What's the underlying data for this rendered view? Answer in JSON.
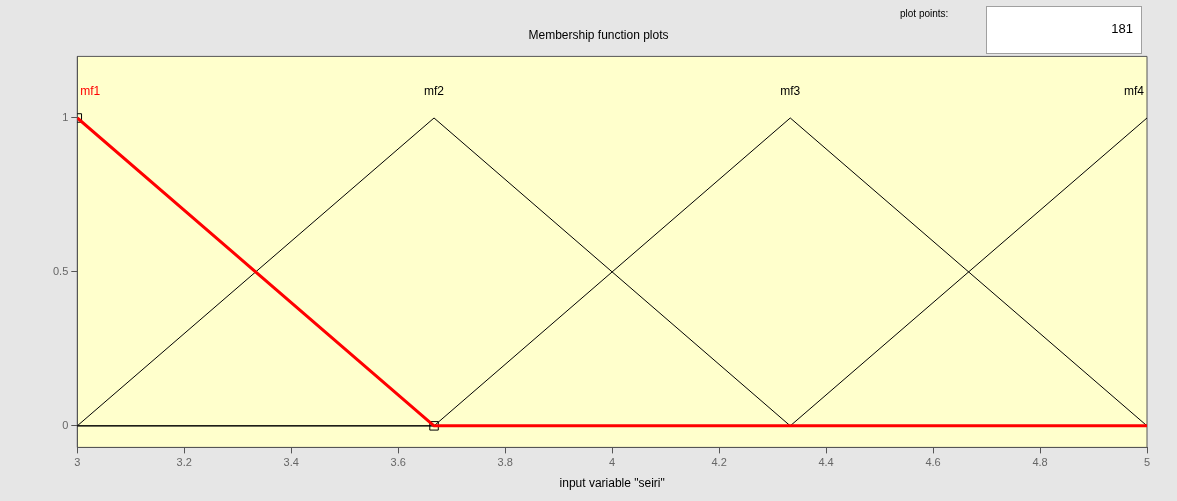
{
  "chart_data": {
    "type": "line",
    "title": "Membership function plots",
    "xlabel": "input variable \"seiri\"",
    "xlim": [
      3,
      5
    ],
    "xticks": [
      3,
      3.2,
      3.4,
      3.6,
      3.8,
      4,
      4.2,
      4.4,
      4.6,
      4.8,
      5
    ],
    "ylim": [
      -0.07,
      1.2
    ],
    "yticks": [
      0,
      0.5,
      1
    ],
    "grid": false,
    "legend": false,
    "marker": "none",
    "line_style": "solid",
    "annotations": [
      "plot points:",
      "181"
    ],
    "series": [
      {
        "name": "mf1",
        "color": "#ff0000",
        "x": [
          3,
          3.667,
          5
        ],
        "values": [
          1,
          0,
          0
        ]
      },
      {
        "name": "mf2",
        "color": "#000000",
        "x": [
          3,
          3.667,
          4.333,
          5
        ],
        "values": [
          0,
          1,
          0,
          0
        ]
      },
      {
        "name": "mf3",
        "color": "#000000",
        "x": [
          3,
          3.667,
          4.333,
          5
        ],
        "values": [
          0,
          0,
          1,
          0
        ]
      },
      {
        "name": "mf4",
        "color": "#000000",
        "x": [
          3,
          4.333,
          5
        ],
        "values": [
          0,
          0,
          1
        ]
      },
      {
        "type": "scatter",
        "color": "#000000",
        "marker": "square",
        "x": [
          3,
          3.667
        ],
        "values": [
          1,
          0
        ]
      }
    ]
  }
}
